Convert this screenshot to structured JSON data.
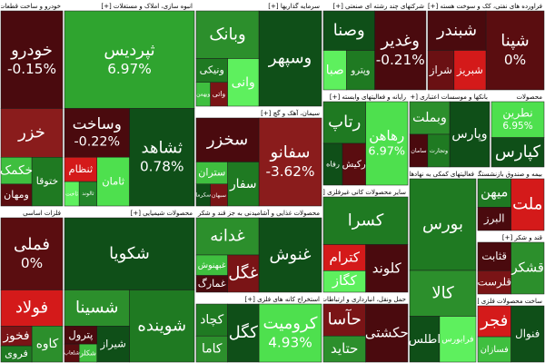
{
  "sectors": [
    {
      "title": "خودرو و ساخت قطعات",
      "tiles": [
        {
          "label": "خودرو",
          "change": "-0.15%",
          "color": "#4a0a0e"
        },
        {
          "label": "خزر",
          "color": "#8a1c1c"
        },
        {
          "label": "ختوقا",
          "color": "#1f7a22"
        },
        {
          "label": "خکمک",
          "color": "#3fbf3f"
        },
        {
          "label": "ومهان",
          "color": "#5a0d10"
        }
      ]
    },
    {
      "title": "انبوه سازی، املاک و مستغلات [+]",
      "tiles": [
        {
          "label": "ثپردیس",
          "change": "6.97%",
          "color": "#2fa42f"
        },
        {
          "label": "ثشاهد",
          "change": "0.78%",
          "color": "#0f4f18"
        },
        {
          "label": "وساخت",
          "change": "-0.22%",
          "color": "#4a0a0e"
        },
        {
          "label": "ثامان",
          "color": "#4ee04e"
        },
        {
          "label": "ثنظام",
          "color": "#d41a1a"
        },
        {
          "label": "ثالوند",
          "color": "#23862a"
        },
        {
          "label": "ثاخت",
          "color": "#5ef05e"
        }
      ]
    },
    {
      "title": "سرمایه گذاریها [+]",
      "tiles": [
        {
          "label": "وسپهر",
          "color": "#0f4f18"
        },
        {
          "label": "وبانک",
          "color": "#2c8f2c"
        },
        {
          "label": "وانی",
          "color": "#5ef05e"
        },
        {
          "label": "ونیکی",
          "color": "#1f7a22"
        },
        {
          "label": "واتی",
          "color": "#7a1416"
        },
        {
          "label": "وبهمن",
          "color": "#3fbf3f"
        }
      ]
    },
    {
      "title": "شرکتهای چند رشته ای صنعتی [+]",
      "tiles": [
        {
          "label": "وغدیر",
          "change": "-0.21%",
          "color": "#4a0a0e"
        },
        {
          "label": "وصنا",
          "color": "#0f4f18"
        },
        {
          "label": "وپترو",
          "color": "#1f7a22"
        },
        {
          "label": "صبا",
          "color": "#5ef05e"
        }
      ]
    },
    {
      "title": "فراورده های نفتی، کک و سوخت هسته [+]",
      "tiles": [
        {
          "label": "شپنا",
          "change": "0%",
          "color": "#5a0d10"
        },
        {
          "label": "شبندر",
          "color": "#4a0a0e"
        },
        {
          "label": "شبریز",
          "color": "#d41a1a"
        },
        {
          "label": "شراز",
          "color": "#6a1013"
        }
      ]
    },
    {
      "title": "سیمان، آهک و گچ [+]",
      "tiles": [
        {
          "label": "سفانو",
          "change": "-3.62%",
          "color": "#8a1c1c"
        },
        {
          "label": "سخزر",
          "color": "#4a0a0e"
        },
        {
          "label": "سفار",
          "color": "#1f7a22"
        },
        {
          "label": "ستران",
          "color": "#3fbf3f"
        },
        {
          "label": "سبهان",
          "color": "#7a1416"
        },
        {
          "label": "سکرما",
          "color": "#0f4f18"
        }
      ]
    },
    {
      "title": "رایانه و فعالیتهای وابسته [+]",
      "tiles": [
        {
          "label": "رهاهن",
          "change": "6.97%",
          "color": "#4ee04e"
        },
        {
          "label": "رتاپ",
          "color": "#1f7a22"
        },
        {
          "label": "رکیش",
          "color": "#5a0d10"
        },
        {
          "label": "رفاه",
          "color": "#0f4f18"
        }
      ]
    },
    {
      "title": "بانکها و موسسات اعتباری [+]",
      "tiles": [
        {
          "label": "وپارس",
          "color": "#0f4f18"
        },
        {
          "label": "وبملت",
          "color": "#2c8f2c"
        },
        {
          "label": "وتجارت",
          "color": "#1f7a22"
        },
        {
          "label": "سامان",
          "color": "#4a0a0e"
        }
      ]
    },
    {
      "title": "محصولات",
      "tiles": [
        {
          "label": "نطرین",
          "change": "6.95%",
          "color": "#4ee04e"
        },
        {
          "label": "کپارس",
          "color": "#0f4f18"
        }
      ]
    },
    {
      "title": "فلزات اساسی",
      "tiles": [
        {
          "label": "فملی",
          "change": "0%",
          "color": "#5a0d10"
        },
        {
          "label": "فولاد",
          "color": "#d41a1a"
        },
        {
          "label": "کاوه",
          "color": "#2c8f2c"
        },
        {
          "label": "فخوز",
          "color": "#7a1416"
        },
        {
          "label": "فروی",
          "color": "#1f7a22"
        }
      ]
    },
    {
      "title": "محصولات شیمیایی [+]",
      "tiles": [
        {
          "label": "شکویا",
          "color": "#0f4f18"
        },
        {
          "label": "شوینده",
          "color": "#1f7a22"
        },
        {
          "label": "شسینا",
          "color": "#2c8f2c"
        },
        {
          "label": "شیراز",
          "color": "#0f4f18"
        },
        {
          "label": "پترول",
          "color": "#4a0a0e"
        },
        {
          "label": "شکلر",
          "color": "#3fbf3f"
        },
        {
          "label": "شلعاب",
          "color": "#5a0d10"
        }
      ]
    },
    {
      "title": "محصولات غذایی و آشامیدنی به جز قند و شکر [+]",
      "tiles": [
        {
          "label": "غنوش",
          "color": "#0f4f18"
        },
        {
          "label": "غدانه",
          "color": "#2c8f2c"
        },
        {
          "label": "غگل",
          "color": "#7a1416"
        },
        {
          "label": "غبهنوش",
          "color": "#3fbf3f"
        },
        {
          "label": "غمارگ",
          "color": "#4a0a0e"
        }
      ]
    },
    {
      "title": "استخراج کانه های فلزی [+]",
      "tiles": [
        {
          "label": "کرومیت",
          "change": "4.93%",
          "color": "#4ee04e"
        },
        {
          "label": "کگل",
          "color": "#0f4f18"
        },
        {
          "label": "کچاد",
          "color": "#1f7a22"
        },
        {
          "label": "کاما",
          "color": "#2c8f2c"
        }
      ]
    },
    {
      "title": "سایر محصولات کانی غیرفلزی [+]",
      "tiles": [
        {
          "label": "کسرا",
          "color": "#1f7a22"
        },
        {
          "label": "کلوند",
          "color": "#4a0a0e"
        },
        {
          "label": "کترام",
          "color": "#d41a1a"
        },
        {
          "label": "کگاز",
          "color": "#5ef05e"
        }
      ]
    },
    {
      "title": "حمل ونقل، انبارداری و ارتباطات",
      "tiles": [
        {
          "label": "حکشتی",
          "color": "#4a0a0e"
        },
        {
          "label": "حآسا",
          "color": "#7a1416"
        },
        {
          "label": "حتاید",
          "color": "#2c8f2c"
        }
      ]
    },
    {
      "title": "فعالیتهای کمکی به نهادهای مالی [+]",
      "tiles": [
        {
          "label": "بورس",
          "color": "#1f7a22"
        },
        {
          "label": "کالا",
          "color": "#2c8f2c"
        },
        {
          "label": "فرابورس",
          "color": "#5ef05e"
        },
        {
          "label": "اطلس",
          "color": "#0f4f18"
        }
      ]
    },
    {
      "title": "بیمه و صندوق بازنشستگی [+]",
      "tiles": [
        {
          "label": "ملت",
          "color": "#d41a1a"
        },
        {
          "label": "میهن",
          "color": "#1f7a22"
        },
        {
          "label": "البرز",
          "color": "#4a0a0e"
        }
      ]
    },
    {
      "title": "قند و شکر [+]",
      "tiles": [
        {
          "label": "قشکر",
          "color": "#2c8f2c"
        },
        {
          "label": "قثابت",
          "color": "#4a0a0e"
        },
        {
          "label": "قلرست",
          "color": "#7a1416"
        }
      ]
    },
    {
      "title": "ساخت محصولات فلزی [+]",
      "tiles": [
        {
          "label": "فنوال",
          "color": "#0f4f18"
        },
        {
          "label": "فجر",
          "color": "#d41a1a"
        },
        {
          "label": "فسازان",
          "color": "#3fbf3f"
        }
      ]
    }
  ]
}
